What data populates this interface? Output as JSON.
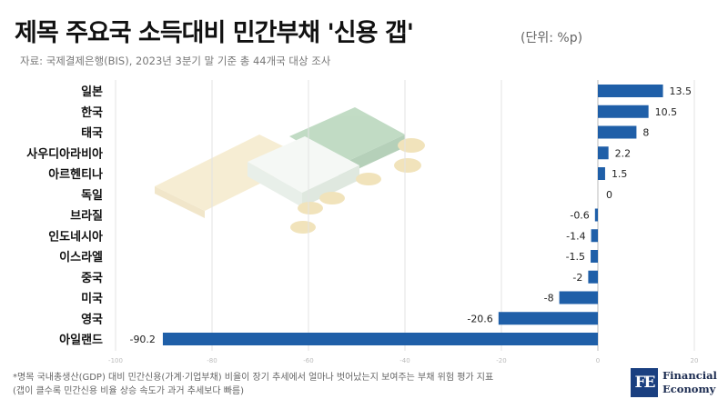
{
  "header": {
    "title": "제목 주요국 소득대비 민간부채 '신용 갭'",
    "unit": "(단위: %p)",
    "source": "자료: 국제결제은행(BIS), 2023년 3분기 말 기준 총 44개국 대상 조사"
  },
  "chart_data": {
    "type": "bar",
    "orientation": "horizontal",
    "categories": [
      "일본",
      "한국",
      "태국",
      "사우디아라비아",
      "아르헨티나",
      "독일",
      "브라질",
      "인도네시아",
      "이스라엘",
      "중국",
      "미국",
      "영국",
      "아일랜드"
    ],
    "values": [
      13.5,
      10.5,
      8,
      2.2,
      1.5,
      0,
      -0.6,
      -1.4,
      -1.5,
      -2,
      -8,
      -20.6,
      -90.2
    ],
    "value_labels": [
      "13.5",
      "10.5",
      "8",
      "2.2",
      "1.5",
      "0",
      "-0.6",
      "-1.4",
      "-1.5",
      "-2",
      "-8",
      "-20.6",
      "-90.2"
    ],
    "xlim": [
      -100,
      20
    ],
    "x_ticks": [
      -100,
      -80,
      -60,
      -40,
      -20,
      0,
      20
    ],
    "x_tick_labels": [
      "-100",
      "-80",
      "-60",
      "-40",
      "-20",
      "0",
      "20"
    ],
    "grid": true,
    "bar_color": "#1f5fa8"
  },
  "footnote": {
    "line1": "*명목 국내총생산(GDP) 대비 민간신용(가계·기업부채) 비율이 장기 추세에서 얼마나 벗어났는지 보여주는 부채 위험 평가 지표",
    "line2": "(갭이 클수록 민간신용 비율 상승 속도가 과거 추세보다 빠름)"
  },
  "logo": {
    "mark": "FE",
    "line1": "Financial",
    "line2": "Economy"
  }
}
